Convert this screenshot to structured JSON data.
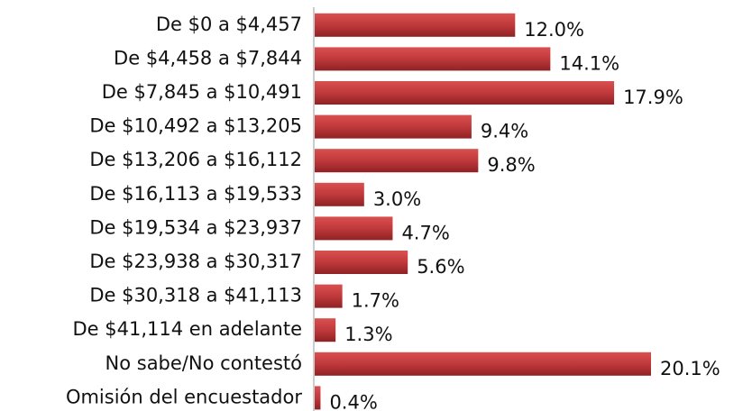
{
  "chart_data": {
    "type": "hbar",
    "categories": [
      "De $0 a $4,457",
      "De $4,458 a $7,844",
      "De $7,845 a $10,491",
      "De $10,492 a $13,205",
      "De $13,206 a $16,112",
      "De $16,113 a $19,533",
      "De $19,534 a $23,937",
      "De $23,938 a $30,317",
      "De $30,318 a $41,113",
      "De $41,114 en adelante",
      "No sabe/No contestó",
      "Omisión del encuestador"
    ],
    "values": [
      12.0,
      14.1,
      17.9,
      9.4,
      9.8,
      3.0,
      4.7,
      5.6,
      1.7,
      1.3,
      20.1,
      0.4
    ],
    "value_labels": [
      "12.0%",
      "14.1%",
      "17.9%",
      "9.4%",
      "9.8%",
      "3.0%",
      "4.7%",
      "5.6%",
      "1.7%",
      "1.3%",
      "20.1%",
      "0.4%"
    ],
    "color": "#c0393b"
  }
}
